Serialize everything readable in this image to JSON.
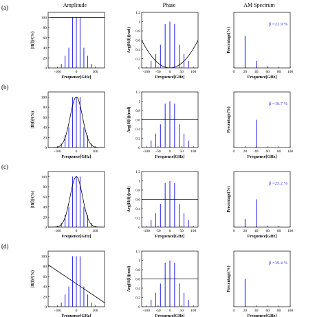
{
  "column_titles": [
    "Amplitude",
    "Phase",
    "AM Spectrum"
  ],
  "row_labels": [
    "(a)",
    "(b)",
    "(c)",
    "(d)"
  ],
  "axis_labels": {
    "x_amplitude": "Frequence[GHz]",
    "x_phase": "Frequence[GHz]",
    "x_spectrum": "Frequence[GHz]",
    "y_amplitude": "|H(f)|²(%)",
    "y_phase": "Arg(H(f))(rad)",
    "y_spectrum": "Precentage(%)"
  },
  "colors": {
    "bars": "#3333ee",
    "curve": "#000000",
    "annotation": "#3333ee",
    "axis": "#000000"
  },
  "chart_data": [
    {
      "panel": "(a)",
      "column": "Amplitude",
      "type": "bar",
      "x": [
        -80,
        -60,
        -40,
        -20,
        0,
        20,
        40,
        60,
        80
      ],
      "values": [
        8,
        24,
        40,
        100,
        100,
        100,
        40,
        24,
        8
      ],
      "curve": {
        "kind": "line",
        "points": [
          [
            -140,
            100
          ],
          [
            150,
            100
          ]
        ]
      },
      "xlim": [
        -150,
        150
      ],
      "ylim": [
        0,
        110
      ],
      "xticks": [
        "-100",
        "0",
        "100"
      ],
      "yticks": [
        "0",
        "20",
        "40",
        "60",
        "80",
        "100"
      ]
    },
    {
      "panel": "(a)",
      "column": "Phase",
      "type": "bar",
      "x": [
        -80,
        -60,
        -40,
        -20,
        0,
        20,
        40,
        60,
        80
      ],
      "values": [
        0.15,
        0.3,
        0.5,
        0.95,
        1.0,
        0.95,
        0.5,
        0.3,
        0.15
      ],
      "curve": {
        "kind": "parabola",
        "vertex": [
          0,
          0
        ],
        "points_at": [
          [
            -120,
            0.6
          ],
          [
            120,
            0.6
          ]
        ]
      },
      "xlim": [
        -120,
        120
      ],
      "ylim": [
        0,
        1.2
      ],
      "xticks": [
        "-100",
        "-50",
        "0",
        "50",
        "100"
      ],
      "yticks": [
        "0",
        "0.2",
        "0.4",
        "0.6",
        "0.8",
        "1",
        "1.2"
      ]
    },
    {
      "panel": "(a)",
      "column": "AM Spectrum",
      "type": "bar",
      "x": [
        20,
        40,
        60,
        80
      ],
      "values": [
        11.5,
        2.5,
        0.6,
        0.2
      ],
      "xlim": [
        0,
        100
      ],
      "ylim": [
        0,
        20
      ],
      "xticks": [
        "0",
        "20",
        "40",
        "60",
        "80",
        "100"
      ],
      "annotation": "β =22.9 %"
    },
    {
      "panel": "(b)",
      "column": "Amplitude",
      "type": "bar",
      "x": [
        -80,
        -60,
        -40,
        -20,
        0,
        20,
        40,
        60,
        80
      ],
      "values": [
        8,
        24,
        40,
        100,
        100,
        100,
        40,
        24,
        8
      ],
      "curve": {
        "kind": "gaussian",
        "center": 0,
        "sigma": 33,
        "peak": 100
      },
      "xlim": [
        -150,
        150
      ],
      "ylim": [
        0,
        110
      ],
      "xticks": [
        "-100",
        "0",
        "100"
      ],
      "yticks": [
        "0",
        "20",
        "40",
        "60",
        "80",
        "100"
      ]
    },
    {
      "panel": "(b)",
      "column": "Phase",
      "type": "bar",
      "x": [
        -80,
        -60,
        -40,
        -20,
        0,
        20,
        40,
        60,
        80
      ],
      "values": [
        0.15,
        0.3,
        0.5,
        0.95,
        1.0,
        0.95,
        0.5,
        0.3,
        0.15
      ],
      "curve": {
        "kind": "line",
        "points": [
          [
            -120,
            0.6
          ],
          [
            120,
            0.6
          ]
        ]
      },
      "xlim": [
        -120,
        120
      ],
      "ylim": [
        0,
        1.2
      ],
      "xticks": [
        "-100",
        "-50",
        "0",
        "50",
        "100"
      ],
      "yticks": [
        "0",
        "0.2",
        "0.4",
        "0.6",
        "0.8",
        "1",
        "1.2"
      ]
    },
    {
      "panel": "(b)",
      "column": "AM Spectrum",
      "type": "bar",
      "x": [
        20,
        40,
        60,
        80
      ],
      "values": [
        0,
        10,
        0,
        0.2
      ],
      "xlim": [
        0,
        100
      ],
      "ylim": [
        0,
        20
      ],
      "xticks": [
        "0",
        "20",
        "40",
        "60",
        "80",
        "100"
      ],
      "annotation": "β =19.7 %"
    },
    {
      "panel": "(c)",
      "column": "Amplitude",
      "type": "bar",
      "x": [
        -80,
        -60,
        -40,
        -20,
        0,
        20,
        40,
        60,
        80
      ],
      "values": [
        8,
        24,
        40,
        100,
        100,
        100,
        40,
        24,
        8
      ],
      "curve": {
        "kind": "gaussian",
        "center": 0,
        "sigma": 33,
        "peak": 100
      },
      "xlim": [
        -150,
        150
      ],
      "ylim": [
        0,
        110
      ],
      "xticks": [
        "-100",
        "0",
        "100"
      ],
      "yticks": [
        "0",
        "20",
        "40",
        "60",
        "80",
        "100"
      ]
    },
    {
      "panel": "(c)",
      "column": "Phase",
      "type": "bar",
      "x": [
        -80,
        -60,
        -40,
        -20,
        0,
        20,
        40,
        60,
        80
      ],
      "values": [
        0.15,
        0.3,
        0.5,
        0.95,
        1.0,
        0.95,
        0.5,
        0.3,
        0.15
      ],
      "curve": {
        "kind": "line",
        "points": [
          [
            -120,
            0.6
          ],
          [
            120,
            0.6
          ]
        ]
      },
      "xlim": [
        -120,
        120
      ],
      "ylim": [
        0,
        1.2
      ],
      "xticks": [
        "-100",
        "-50",
        "0",
        "50",
        "100"
      ],
      "yticks": [
        "0",
        "0.2",
        "0.4",
        "0.6",
        "0.8",
        "1",
        "1.2"
      ]
    },
    {
      "panel": "(c)",
      "column": "AM Spectrum",
      "type": "bar",
      "x": [
        20,
        40,
        60,
        80
      ],
      "values": [
        3,
        10,
        0.5,
        0.3
      ],
      "xlim": [
        0,
        100
      ],
      "ylim": [
        0,
        20
      ],
      "xticks": [
        "0",
        "20",
        "40",
        "60",
        "80",
        "100"
      ],
      "annotation": "β =23.2 %"
    },
    {
      "panel": "(d)",
      "column": "Amplitude",
      "type": "bar",
      "x": [
        -80,
        -60,
        -40,
        -20,
        0,
        20,
        40,
        60,
        80
      ],
      "values": [
        8,
        24,
        40,
        100,
        100,
        100,
        40,
        24,
        8
      ],
      "curve": {
        "kind": "line",
        "points": [
          [
            -150,
            83
          ],
          [
            150,
            8
          ]
        ]
      },
      "xlim": [
        -150,
        150
      ],
      "ylim": [
        0,
        110
      ],
      "xticks": [
        "-100",
        "0",
        "100"
      ],
      "yticks": [
        "0",
        "20",
        "40",
        "60",
        "80",
        "100"
      ]
    },
    {
      "panel": "(d)",
      "column": "Phase",
      "type": "bar",
      "x": [
        -80,
        -60,
        -40,
        -20,
        0,
        20,
        40,
        60,
        80
      ],
      "values": [
        0.15,
        0.3,
        0.5,
        0.95,
        1.0,
        0.95,
        0.5,
        0.3,
        0.15
      ],
      "curve": {
        "kind": "line",
        "points": [
          [
            -120,
            0.6
          ],
          [
            120,
            0.6
          ]
        ]
      },
      "xlim": [
        -120,
        120
      ],
      "ylim": [
        0,
        1.2
      ],
      "xticks": [
        "-100",
        "-50",
        "0",
        "50",
        "100"
      ],
      "yticks": [
        "0",
        "0.2",
        "0.4",
        "0.6",
        "0.8",
        "1",
        "1.2"
      ]
    },
    {
      "panel": "(d)",
      "column": "AM Spectrum",
      "type": "bar",
      "x": [
        20,
        40,
        60,
        80
      ],
      "values": [
        10,
        0,
        0,
        0
      ],
      "xlim": [
        0,
        100
      ],
      "ylim": [
        0,
        20
      ],
      "xticks": [
        "0",
        "20",
        "40",
        "60",
        "80",
        "100"
      ],
      "annotation": "β =19.4 %"
    }
  ]
}
